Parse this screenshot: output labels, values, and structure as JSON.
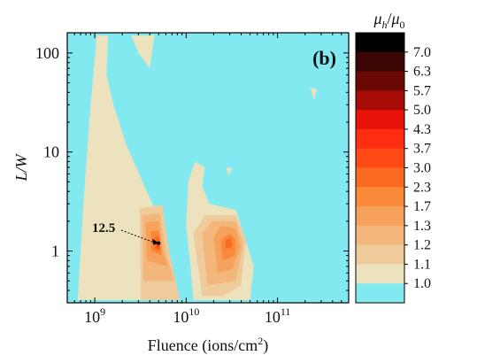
{
  "chart_data": {
    "type": "heatmap",
    "panel_label": "(b)",
    "xlabel": "Fluence (ions/cm²)",
    "ylabel": "L/W",
    "x_scale": "log",
    "y_scale": "log",
    "xlim": [
      500000000.0,
      600000000000.0
    ],
    "ylim": [
      0.3,
      160
    ],
    "x_ticks": [
      {
        "value": 1000000000.0,
        "label_base": "10",
        "label_exp": "9"
      },
      {
        "value": 10000000000.0,
        "label_base": "10",
        "label_exp": "10"
      },
      {
        "value": 100000000000.0,
        "label_base": "10",
        "label_exp": "11"
      }
    ],
    "y_ticks": [
      {
        "value": 1,
        "label": "1"
      },
      {
        "value": 10,
        "label": "10"
      },
      {
        "value": 100,
        "label": "100"
      }
    ],
    "colorbar": {
      "title_main": "μ",
      "title_sub": "h",
      "title_sep": "/",
      "title_main2": "μ",
      "title_sub2": "0",
      "labels": [
        "7.0",
        "6.3",
        "5.7",
        "5.0",
        "4.3",
        "3.7",
        "3.0",
        "2.3",
        "1.7",
        "1.3",
        "1.2",
        "1.1",
        "1.0"
      ],
      "colors": [
        "#000000",
        "#3a0503",
        "#6b0804",
        "#a80c06",
        "#e8140a",
        "#ff2e10",
        "#ff4a16",
        "#fb6a20",
        "#fa8a3a",
        "#f7a25c",
        "#f3b77c",
        "#efcb9c",
        "#ece2bd",
        "#81e9ef"
      ]
    },
    "peak_annotation": {
      "label": "12.5",
      "x": 5000000000.0,
      "y": 1.2
    },
    "regions": [
      {
        "level": "1.1",
        "polygon": [
          [
            650000000.0,
            0.32
          ],
          [
            750000000.0,
            3
          ],
          [
            900000000.0,
            30
          ],
          [
            1050000000.0,
            150
          ],
          [
            1400000000.0,
            150
          ],
          [
            1350000000.0,
            60
          ],
          [
            1600000000.0,
            30
          ],
          [
            2200000000.0,
            12
          ],
          [
            3500000000.0,
            4.5
          ],
          [
            6000000000.0,
            1.5
          ],
          [
            8000000000.0,
            0.32
          ]
        ]
      },
      {
        "level": "1.1",
        "polygon": [
          [
            12000000000.0,
            0.32
          ],
          [
            11000000000.0,
            0.8
          ],
          [
            10000000000.0,
            1.8
          ],
          [
            10500000000.0,
            5
          ],
          [
            12500000000.0,
            8
          ],
          [
            16000000000.0,
            7
          ],
          [
            15000000000.0,
            4.5
          ],
          [
            18000000000.0,
            3
          ],
          [
            35000000000.0,
            2.6
          ],
          [
            55000000000.0,
            0.7
          ],
          [
            50000000000.0,
            0.32
          ]
        ]
      },
      {
        "level": "1.1",
        "polygon": [
          [
            2500000000.0,
            150
          ],
          [
            4500000000.0,
            150
          ],
          [
            4000000000.0,
            70
          ],
          [
            3000000000.0,
            100
          ]
        ]
      },
      {
        "level": "1.1",
        "polygon": [
          [
            230000000000.0,
            45.0
          ],
          [
            270000000000.0,
            43.0
          ],
          [
            250000000000.0,
            33.0
          ]
        ]
      },
      {
        "level": "1.1",
        "polygon": [
          [
            27500000000.0,
            7
          ],
          [
            32000000000.0,
            6.8
          ],
          [
            29000000000.0,
            5.8
          ]
        ]
      },
      {
        "level": "1.2",
        "polygon": [
          [
            3200000000.0,
            0.32
          ],
          [
            3100000000.0,
            2.7
          ],
          [
            5500000000.0,
            2.9
          ],
          [
            6500000000.0,
            1.0
          ],
          [
            8500000000.0,
            0.32
          ]
        ]
      },
      {
        "level": "1.3",
        "polygon": [
          [
            3400000000.0,
            0.5
          ],
          [
            3300000000.0,
            2.3
          ],
          [
            5200000000.0,
            2.4
          ],
          [
            6000000000.0,
            0.95
          ],
          [
            7500000000.0,
            0.5
          ]
        ]
      },
      {
        "level": "1.7",
        "polygon": [
          [
            3700000000.0,
            0.8
          ],
          [
            3600000000.0,
            1.95
          ],
          [
            5000000000.0,
            2
          ],
          [
            5600000000.0,
            0.95
          ],
          [
            6300000000.0,
            0.7
          ]
        ]
      },
      {
        "level": "2.3",
        "polygon": [
          [
            4100000000.0,
            1
          ],
          [
            4100000000.0,
            1.6
          ],
          [
            5000000000.0,
            1.6
          ],
          [
            5300000000.0,
            1.1
          ],
          [
            5300000000.0,
            0.9
          ]
        ]
      },
      {
        "level": "3.0",
        "polygon": [
          [
            4500000000.0,
            1.05
          ],
          [
            4500000000.0,
            1.4
          ],
          [
            5100000000.0,
            1.4
          ],
          [
            5200000000.0,
            1.0
          ]
        ]
      },
      {
        "level": "3.7",
        "polygon": [
          [
            4700000000.0,
            1.1
          ],
          [
            4800000000.0,
            1.3
          ],
          [
            5100000000.0,
            1.25
          ],
          [
            5100000000.0,
            1.05
          ]
        ]
      },
      {
        "level": "4.3",
        "polygon": [
          [
            4850000000.0,
            1.13
          ],
          [
            4950000000.0,
            1.24
          ],
          [
            5050000000.0,
            1.15
          ]
        ]
      },
      {
        "level": "1.2",
        "polygon": [
          [
            15000000000.0,
            0.35
          ],
          [
            12000000000.0,
            1.5
          ],
          [
            16000000000.0,
            2.3
          ],
          [
            35000000000.0,
            2.3
          ],
          [
            45000000000.0,
            1.3
          ],
          [
            40000000000.0,
            0.45
          ],
          [
            25000000000.0,
            0.35
          ]
        ]
      },
      {
        "level": "1.3",
        "polygon": [
          [
            17000000000.0,
            0.45
          ],
          [
            15000000000.0,
            1.5
          ],
          [
            19000000000.0,
            2.0
          ],
          [
            35000000000.0,
            2.0
          ],
          [
            42000000000.0,
            1.2
          ],
          [
            35000000000.0,
            0.5
          ]
        ]
      },
      {
        "level": "1.7",
        "polygon": [
          [
            22000000000.0,
            0.6
          ],
          [
            20000000000.0,
            1.4
          ],
          [
            24000000000.0,
            1.8
          ],
          [
            35000000000.0,
            1.7
          ],
          [
            39000000000.0,
            1.1
          ],
          [
            32000000000.0,
            0.65
          ]
        ]
      },
      {
        "level": "2.3",
        "polygon": [
          [
            25000000000.0,
            0.8
          ],
          [
            24000000000.0,
            1.3
          ],
          [
            30000000000.0,
            1.5
          ],
          [
            35000000000.0,
            1.3
          ],
          [
            34000000000.0,
            0.9
          ]
        ]
      },
      {
        "level": "3.0",
        "polygon": [
          [
            27000000000.0,
            1.05
          ],
          [
            27000000000.0,
            1.3
          ],
          [
            31000000000.0,
            1.35
          ],
          [
            32000000000.0,
            1.1
          ]
        ]
      }
    ]
  }
}
